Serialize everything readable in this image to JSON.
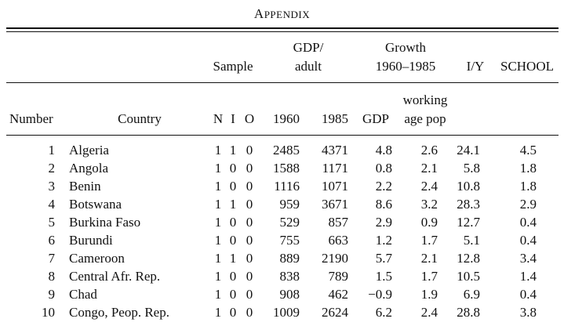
{
  "title": {
    "first": "A",
    "rest": "PPENDIX"
  },
  "headers": {
    "sample": "Sample",
    "gdp_adult": [
      "GDP/",
      "adult"
    ],
    "growth": [
      "Growth",
      "1960–1985"
    ],
    "iy": "I/Y",
    "school": "SCHOOL",
    "number": "Number",
    "country": "Country",
    "n": "N",
    "i": "I",
    "o": "O",
    "y1960": "1960",
    "y1985": "1985",
    "gdp": "GDP",
    "working": "working",
    "age_pop": "age pop"
  },
  "rows": [
    [
      "1",
      "Algeria",
      "1",
      "1",
      "0",
      "2485",
      "4371",
      "4.8",
      "2.6",
      "24.1",
      "4.5"
    ],
    [
      "2",
      "Angola",
      "1",
      "0",
      "0",
      "1588",
      "1171",
      "0.8",
      "2.1",
      "5.8",
      "1.8"
    ],
    [
      "3",
      "Benin",
      "1",
      "0",
      "0",
      "1116",
      "1071",
      "2.2",
      "2.4",
      "10.8",
      "1.8"
    ],
    [
      "4",
      "Botswana",
      "1",
      "1",
      "0",
      "959",
      "3671",
      "8.6",
      "3.2",
      "28.3",
      "2.9"
    ],
    [
      "5",
      "Burkina Faso",
      "1",
      "0",
      "0",
      "529",
      "857",
      "2.9",
      "0.9",
      "12.7",
      "0.4"
    ],
    [
      "6",
      "Burundi",
      "1",
      "0",
      "0",
      "755",
      "663",
      "1.2",
      "1.7",
      "5.1",
      "0.4"
    ],
    [
      "7",
      "Cameroon",
      "1",
      "1",
      "0",
      "889",
      "2190",
      "5.7",
      "2.1",
      "12.8",
      "3.4"
    ],
    [
      "8",
      "Central Afr. Rep.",
      "1",
      "0",
      "0",
      "838",
      "789",
      "1.5",
      "1.7",
      "10.5",
      "1.4"
    ],
    [
      "9",
      "Chad",
      "1",
      "0",
      "0",
      "908",
      "462",
      "−0.9",
      "1.9",
      "6.9",
      "0.4"
    ],
    [
      "10",
      "Congo, Peop. Rep.",
      "1",
      "0",
      "0",
      "1009",
      "2624",
      "6.2",
      "2.4",
      "28.8",
      "3.8"
    ]
  ]
}
